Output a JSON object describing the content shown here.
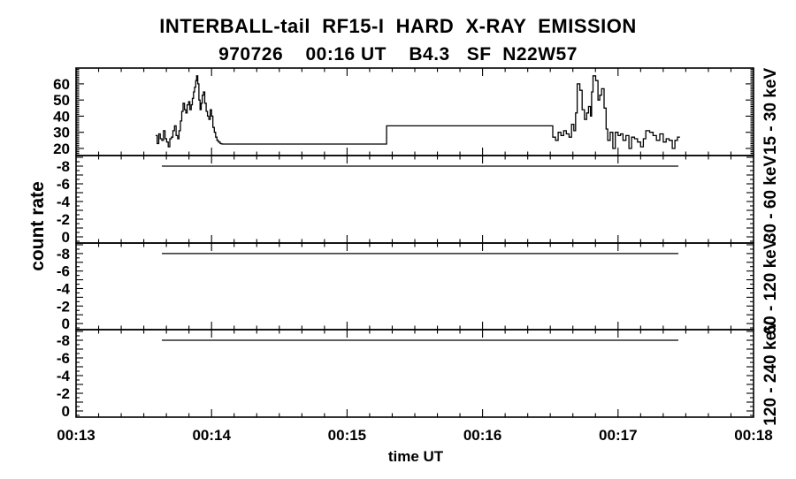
{
  "colors": {
    "foreground": "#000000",
    "background": "#ffffff"
  },
  "chart_data": {
    "type": "line",
    "style": "step-histogram",
    "title": "INTERBALL-tail  RF15-I  HARD  X-RAY  EMISSION",
    "subtitle": "970726    00:16 UT    B4.3   SF  N22W57",
    "xlabel": "time UT",
    "ylabel": "count rate",
    "x_axis": {
      "range_seconds": [
        0,
        300
      ],
      "start_time": "00:13",
      "end_time": "00:18",
      "major_tick_seconds": 60,
      "minor_tick_seconds": 10,
      "tick_labels": [
        "00:13",
        "00:14",
        "00:15",
        "00:16",
        "00:17",
        "00:18"
      ]
    },
    "panels": [
      {
        "band_label": "15 - 30 keV",
        "ylim": [
          15.6,
          69.8
        ],
        "ytick_minor_step": 1,
        "ytick_major_step": 10,
        "ytick_labels": [
          20,
          30,
          40,
          50,
          60
        ],
        "t_end": 267.4,
        "series_steps": [
          [
            35.2,
            28
          ],
          [
            35.9,
            23
          ],
          [
            36.6,
            29
          ],
          [
            37.3,
            26
          ],
          [
            38,
            25
          ],
          [
            38.7,
            31
          ],
          [
            39.4,
            26
          ],
          [
            40.1,
            24
          ],
          [
            40.8,
            21
          ],
          [
            41.5,
            26
          ],
          [
            42.2,
            27
          ],
          [
            42.9,
            31
          ],
          [
            43.6,
            34
          ],
          [
            44.3,
            28
          ],
          [
            45,
            26
          ],
          [
            45.6,
            31
          ],
          [
            46.2,
            37
          ],
          [
            46.8,
            43
          ],
          [
            47.4,
            48
          ],
          [
            48,
            44
          ],
          [
            48.6,
            42
          ],
          [
            49.2,
            47
          ],
          [
            49.8,
            49
          ],
          [
            50.4,
            44
          ],
          [
            51,
            47
          ],
          [
            51.5,
            51
          ],
          [
            52,
            55
          ],
          [
            52.5,
            58
          ],
          [
            53,
            62
          ],
          [
            53.4,
            65
          ],
          [
            53.9,
            60
          ],
          [
            54.4,
            50
          ],
          [
            54.9,
            44
          ],
          [
            55.4,
            48
          ],
          [
            55.9,
            53
          ],
          [
            56.4,
            55
          ],
          [
            57,
            48
          ],
          [
            57.6,
            43
          ],
          [
            58.2,
            40
          ],
          [
            58.8,
            38
          ],
          [
            59.4,
            44
          ],
          [
            60,
            40
          ],
          [
            60.6,
            33
          ],
          [
            61.2,
            30
          ],
          [
            61.8,
            27
          ],
          [
            62.4,
            25
          ],
          [
            63,
            24
          ],
          [
            63.8,
            23
          ],
          [
            64.6,
            22.7
          ],
          [
            137.5,
            34
          ],
          [
            211.1,
            27
          ],
          [
            212.3,
            25
          ],
          [
            213.5,
            30
          ],
          [
            214.7,
            28
          ],
          [
            215.9,
            31
          ],
          [
            217.1,
            29
          ],
          [
            218.3,
            27
          ],
          [
            219.4,
            35
          ],
          [
            220.4,
            31
          ],
          [
            221.2,
            42
          ],
          [
            221.9,
            60
          ],
          [
            223.1,
            56
          ],
          [
            224.1,
            44
          ],
          [
            225.1,
            38
          ],
          [
            226.1,
            42
          ],
          [
            226.9,
            46
          ],
          [
            227.8,
            40
          ],
          [
            228.3,
            55
          ],
          [
            228.9,
            65
          ],
          [
            230.1,
            62
          ],
          [
            231.1,
            50
          ],
          [
            231.9,
            53
          ],
          [
            232.7,
            57
          ],
          [
            233.8,
            45
          ],
          [
            234.7,
            32
          ],
          [
            235.4,
            25
          ],
          [
            236.5,
            30
          ],
          [
            237.7,
            20
          ],
          [
            238.8,
            30
          ],
          [
            240,
            28
          ],
          [
            241.1,
            29
          ],
          [
            242.2,
            25
          ],
          [
            243.5,
            28
          ],
          [
            244.8,
            20
          ],
          [
            246,
            27
          ],
          [
            247.3,
            26
          ],
          [
            248.6,
            24
          ],
          [
            250,
            21
          ],
          [
            251.2,
            26
          ],
          [
            252.3,
            31
          ],
          [
            254,
            30
          ],
          [
            255.5,
            28
          ],
          [
            257,
            25
          ],
          [
            258.5,
            29
          ],
          [
            260,
            24
          ],
          [
            261.3,
            26
          ],
          [
            262.6,
            25
          ],
          [
            264,
            20
          ],
          [
            265.2,
            25
          ],
          [
            266.3,
            27
          ]
        ]
      },
      {
        "band_label": "30 - 60 keV",
        "ylim": [
          0.7,
          -9.2
        ],
        "ytick_minor_step": 0.5,
        "ytick_major_step": 1,
        "ytick_labels": [
          -8,
          -6,
          -4,
          -2,
          0
        ],
        "flat_line": {
          "value": -8,
          "t_start": 38,
          "t_end": 266.7
        }
      },
      {
        "band_label": "60 - 120 keV",
        "ylim": [
          0.7,
          -9.2
        ],
        "ytick_minor_step": 0.5,
        "ytick_major_step": 1,
        "ytick_labels": [
          -8,
          -6,
          -4,
          -2,
          0
        ],
        "flat_line": {
          "value": -8,
          "t_start": 38,
          "t_end": 266.7
        }
      },
      {
        "band_label": "120 - 240 keV",
        "ylim": [
          0.7,
          -9.2
        ],
        "ytick_minor_step": 0.5,
        "ytick_major_step": 1,
        "ytick_labels": [
          -8,
          -6,
          -4,
          -2,
          0
        ],
        "flat_line": {
          "value": -8,
          "t_start": 38,
          "t_end": 266.7
        }
      }
    ]
  }
}
